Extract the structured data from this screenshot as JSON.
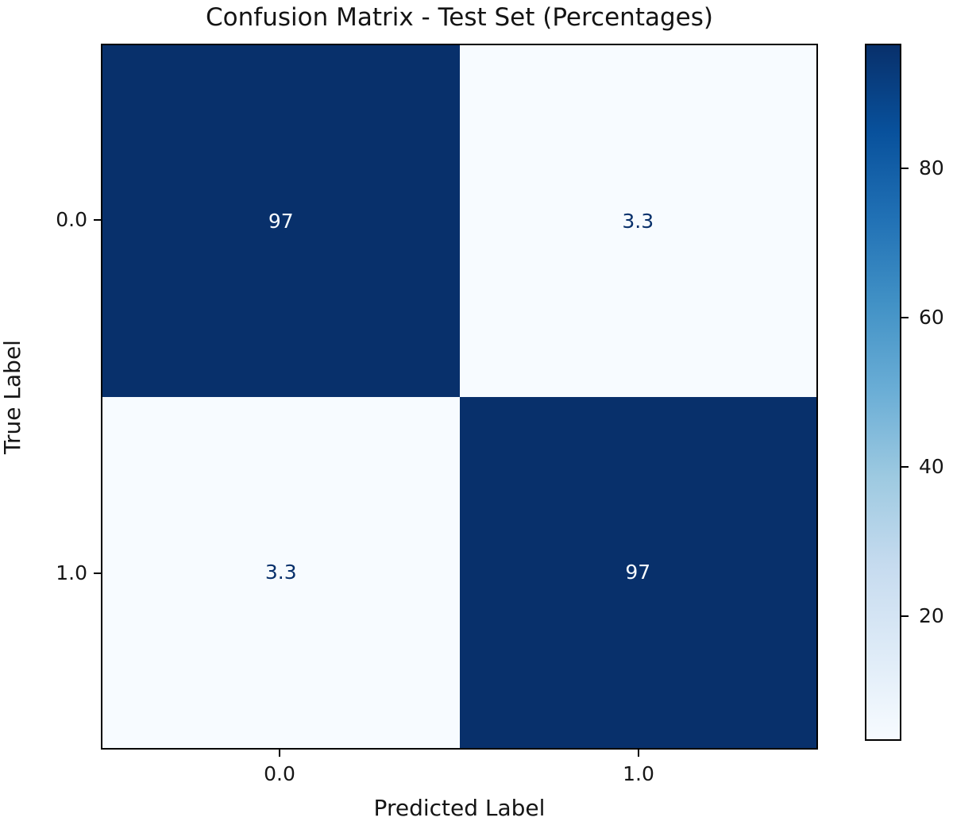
{
  "title": "Confusion Matrix - Test Set (Percentages)",
  "axes": {
    "xlabel": "Predicted Label",
    "ylabel": "True Label",
    "xticks": [
      "0.0",
      "1.0"
    ],
    "yticks": [
      "0.0",
      "1.0"
    ]
  },
  "matrix": {
    "annotations": [
      [
        "97",
        "3.3"
      ],
      [
        "3.3",
        "97"
      ]
    ],
    "cell_colors": [
      [
        "#08306b",
        "#f7fbff"
      ],
      [
        "#f7fbff",
        "#08306b"
      ]
    ],
    "text_colors": [
      [
        "#f7fbff",
        "#08306b"
      ],
      [
        "#08306b",
        "#f7fbff"
      ]
    ]
  },
  "colorbar": {
    "vmin": 3.3,
    "vmax": 96.7,
    "tick_values": [
      20,
      40,
      60,
      80
    ],
    "tick_labels": [
      "20",
      "40",
      "60",
      "80"
    ],
    "gradient_stops": [
      "#f7fbff",
      "#deebf7",
      "#c6dbef",
      "#9ecae1",
      "#6baed6",
      "#4292c6",
      "#2171b5",
      "#08519c",
      "#08306b"
    ]
  },
  "colors": {
    "high_cell": "#08306b",
    "low_cell": "#f7fbff",
    "spine": "#000000",
    "text": "#141414"
  },
  "chart_data": {
    "type": "heatmap",
    "title": "Confusion Matrix - Test Set (Percentages)",
    "xlabel": "Predicted Label",
    "ylabel": "True Label",
    "x_categories": [
      "0.0",
      "1.0"
    ],
    "y_categories": [
      "0.0",
      "1.0"
    ],
    "values": [
      [
        96.7,
        3.3
      ],
      [
        3.3,
        96.7
      ]
    ],
    "value_labels": [
      [
        "97",
        "3.3"
      ],
      [
        "3.3",
        "97"
      ]
    ],
    "units": "percent",
    "colormap": "Blues",
    "vmin": 3.3,
    "vmax": 96.7,
    "colorbar_ticks": [
      20,
      40,
      60,
      80
    ],
    "colorbar_position": "right",
    "grid": false
  }
}
